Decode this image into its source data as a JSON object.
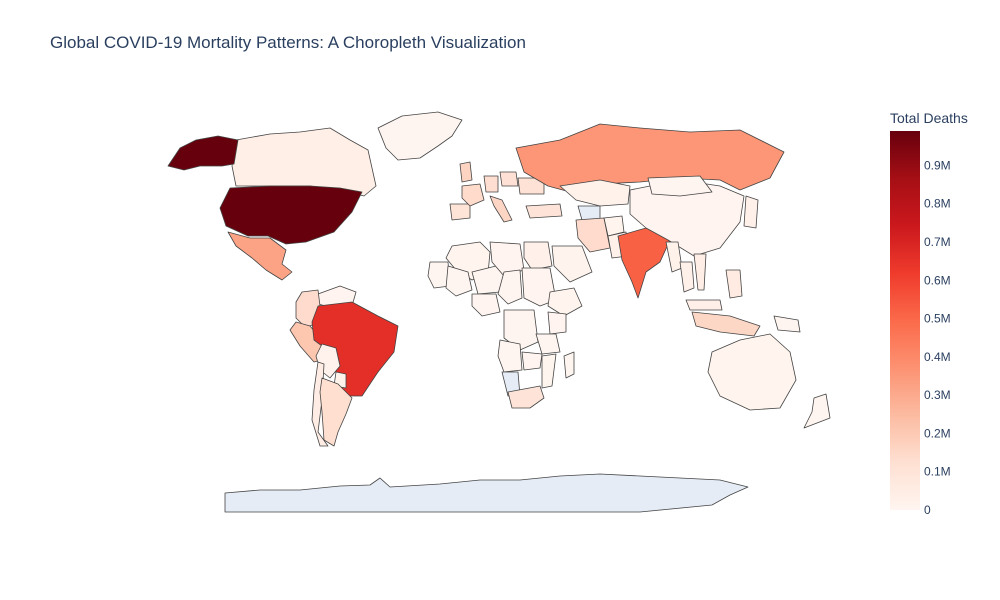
{
  "title": "Global COVID-19 Mortality Patterns: A Choropleth Visualization",
  "colorbar": {
    "title": "Total Deaths",
    "ticks": [
      {
        "label": "0",
        "value": 0
      },
      {
        "label": "0.1M",
        "value": 100000
      },
      {
        "label": "0.2M",
        "value": 200000
      },
      {
        "label": "0.3M",
        "value": 300000
      },
      {
        "label": "0.4M",
        "value": 400000
      },
      {
        "label": "0.5M",
        "value": 500000
      },
      {
        "label": "0.6M",
        "value": 600000
      },
      {
        "label": "0.7M",
        "value": 700000
      },
      {
        "label": "0.8M",
        "value": 800000
      },
      {
        "label": "0.9M",
        "value": 900000
      }
    ],
    "range": [
      0,
      990000
    ],
    "colors": [
      "#fff5f0",
      "#fee0d2",
      "#fcbba1",
      "#fc9272",
      "#fb6a4a",
      "#ef3b2c",
      "#cb181d",
      "#a50f15",
      "#67000d"
    ]
  },
  "no_data_color": "#e5ecf6",
  "border_color": "#444444",
  "countries": {
    "United States": 990000,
    "Brazil": 660000,
    "India": 520000,
    "Russia": 360000,
    "Mexico": 320000,
    "Peru": 212000,
    "United Kingdom": 165000,
    "Italy": 160000,
    "Indonesia": 155000,
    "Colombia": 139000,
    "Iran": 140000,
    "France": 142000,
    "Argentina": 128000,
    "Germany": 130000,
    "Poland": 115000,
    "Ukraine": 110000,
    "South Africa": 100000,
    "Spain": 102000,
    "Turkey": 98000,
    "Philippines": 60000,
    "Canada": 38000,
    "China": 5000,
    "Kazakhstan": 19000,
    "Australia": 7000,
    "Chile": 45000,
    "Saudi Arabia": 9000,
    "Egypt": 24000,
    "Algeria": 7000,
    "Venezuela": 6000,
    "Bolivia": 22000,
    "Paraguay": 19000,
    "Japan": 30000,
    "Malaysia": 35000,
    "Thailand": 29000,
    "Mongolia": 2000,
    "Sudan": 5000,
    "Libya": 6000,
    "Ethiopia": 7500,
    "DR Congo": 1300,
    "Angola": 1900,
    "Tanzania": 800,
    "Nigeria": 3100,
    "Niger": 300,
    "Mali": 700,
    "Chad": 190,
    "Mauritania": 980,
    "Kenya": 5600,
    "Mozambique": 2200,
    "Zambia": 4000,
    "Madagascar": 1400,
    "Pakistan": 30000,
    "Afghanistan": 7700,
    "Myanmar": 19000,
    "Vietnam": 43000,
    "Papua New Guinea": 650,
    "New Zealand": 600,
    "Greenland": 21,
    "Alaska (USA)": 990000
  },
  "no_data": [
    "Namibia",
    "Turkmenistan",
    "Antarctica"
  ]
}
